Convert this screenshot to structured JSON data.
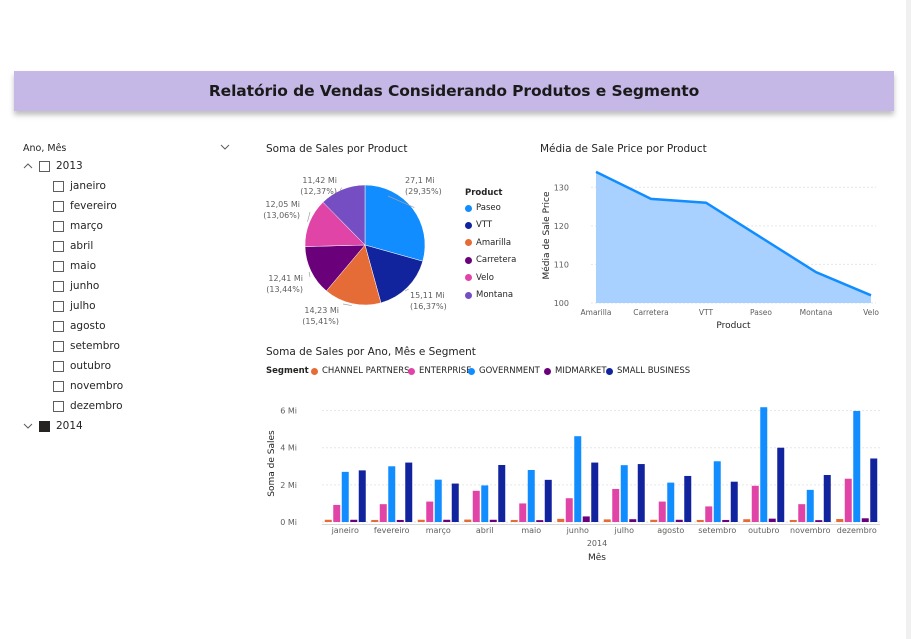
{
  "report": {
    "title": "Relatório de Vendas Considerando Produtos e Segmento"
  },
  "slicer": {
    "header": "Ano, Mês",
    "years": [
      {
        "label": "2013",
        "expanded": true,
        "checked": false
      },
      {
        "label": "2014",
        "expanded": false,
        "checked": true
      }
    ],
    "months": [
      "janeiro",
      "fevereiro",
      "março",
      "abril",
      "maio",
      "junho",
      "julho",
      "agosto",
      "setembro",
      "outubro",
      "novembro",
      "dezembro"
    ]
  },
  "colors": {
    "banner": "#c5b8e6",
    "Paseo": "#118dff",
    "VTT": "#12239e",
    "Amarilla": "#e66c37",
    "Carretera": "#6b007b",
    "Velo": "#e044a7",
    "Montana": "#744ec2",
    "area_fill": "#a8d1ff",
    "area_line": "#118dff"
  },
  "chart_data": [
    {
      "type": "pie",
      "title": "Soma de Sales por Product",
      "legend_title": "Product",
      "legend_position": "right",
      "slices": [
        {
          "name": "Paseo",
          "value": 27.1,
          "label": "27,1 Mi",
          "percent": "(29,35%)"
        },
        {
          "name": "VTT",
          "value": 15.11,
          "label": "15,11 Mi",
          "percent": "(16,37%)"
        },
        {
          "name": "Amarilla",
          "value": 14.23,
          "label": "14,23 Mi",
          "percent": "(15,41%)"
        },
        {
          "name": "Carretera",
          "value": 12.41,
          "label": "12,41 Mi",
          "percent": "(13,44%)"
        },
        {
          "name": "Velo",
          "value": 12.05,
          "label": "12,05 Mi",
          "percent": "(13,06%)"
        },
        {
          "name": "Montana",
          "value": 11.42,
          "label": "11,42 Mi",
          "percent": "(12,37%)"
        }
      ]
    },
    {
      "type": "area",
      "title": "Média de Sale Price por Product",
      "xlabel": "Product",
      "ylabel": "Média de Sale Price",
      "categories": [
        "Amarilla",
        "Carretera",
        "VTT",
        "Paseo",
        "Montana",
        "Velo"
      ],
      "values": [
        134,
        127,
        126,
        117,
        108,
        102
      ],
      "ylim": [
        100,
        135
      ],
      "yticks": [
        100,
        110,
        120,
        130
      ],
      "grid": true
    },
    {
      "type": "bar",
      "title": "Soma de Sales por Ano, Mês e Segment",
      "legend_title": "Segment",
      "legend_position": "top-left",
      "xlabel": "Mês",
      "ylabel": "Soma de Sales",
      "x_group_label": "2014",
      "ylim": [
        0,
        6.3
      ],
      "yticks": [
        0,
        2,
        4,
        6
      ],
      "ytick_labels": [
        "0 Mi",
        "2 Mi",
        "4 Mi",
        "6 Mi"
      ],
      "grid": true,
      "categories": [
        "janeiro",
        "fevereiro",
        "março",
        "abril",
        "maio",
        "junho",
        "julho",
        "agosto",
        "setembro",
        "outubro",
        "novembro",
        "dezembro"
      ],
      "series": [
        {
          "name": "CHANNEL PARTNERS",
          "color": "#e66c37",
          "values": [
            0.12,
            0.11,
            0.12,
            0.13,
            0.11,
            0.17,
            0.14,
            0.12,
            0.11,
            0.15,
            0.11,
            0.16
          ]
        },
        {
          "name": "ENTERPRISE",
          "color": "#e044a7",
          "values": [
            0.92,
            0.96,
            1.1,
            1.68,
            1.0,
            1.28,
            1.78,
            1.1,
            0.84,
            1.95,
            0.96,
            2.33
          ]
        },
        {
          "name": "GOVERNMENT",
          "color": "#118dff",
          "values": [
            2.7,
            3.0,
            2.28,
            1.97,
            2.8,
            4.62,
            3.06,
            2.12,
            3.27,
            6.18,
            1.73,
            5.98
          ]
        },
        {
          "name": "MIDMARKET",
          "color": "#6b007b",
          "values": [
            0.12,
            0.11,
            0.12,
            0.12,
            0.1,
            0.3,
            0.15,
            0.12,
            0.11,
            0.18,
            0.1,
            0.2
          ]
        },
        {
          "name": "SMALL BUSINESS",
          "color": "#12239e",
          "values": [
            2.78,
            3.2,
            2.07,
            3.07,
            2.27,
            3.2,
            3.12,
            2.48,
            2.17,
            4.0,
            2.53,
            3.42
          ]
        }
      ]
    }
  ]
}
